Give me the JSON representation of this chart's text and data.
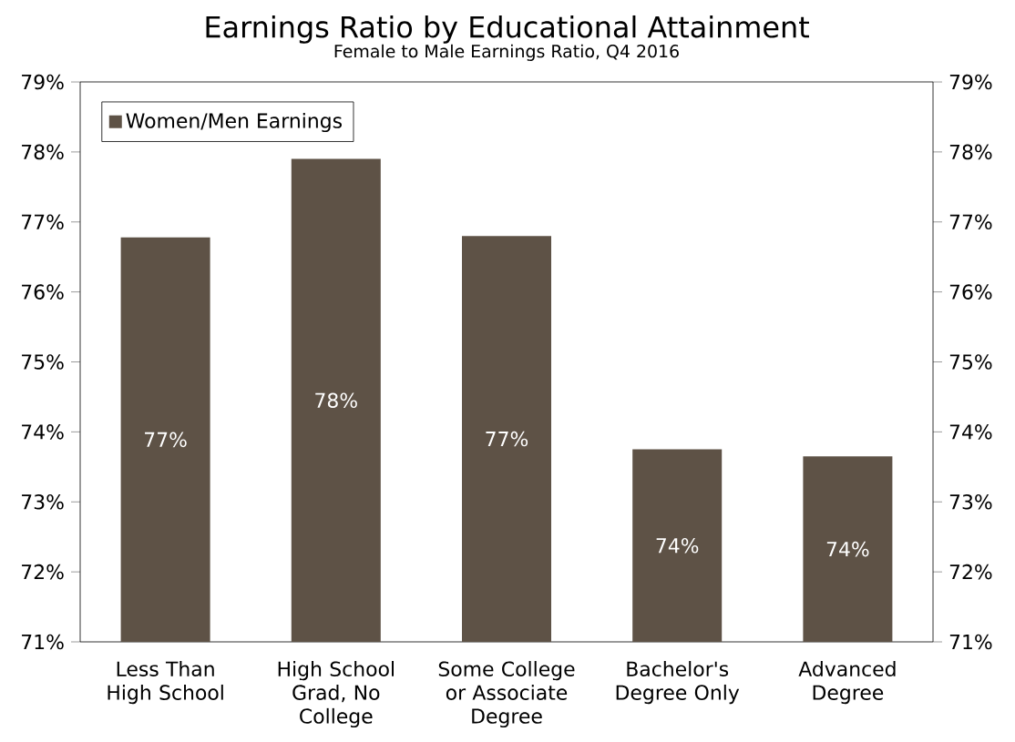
{
  "chart_data": {
    "type": "bar",
    "title": "Earnings Ratio by Educational Attainment",
    "subtitle": "Female to Male Earnings Ratio, Q4 2016",
    "categories": [
      "Less Than High School",
      "High School Grad, No College",
      "Some College or Associate Degree",
      "Bachelor's Degree Only",
      "Advanced Degree"
    ],
    "series": [
      {
        "name": "Women/Men Earnings",
        "color": "#5e5246",
        "values": [
          76.78,
          77.9,
          76.8,
          73.75,
          73.65
        ],
        "value_labels": [
          "77%",
          "78%",
          "77%",
          "74%",
          "74%"
        ]
      }
    ],
    "ylim": [
      71,
      79
    ],
    "yticks": [
      {
        "value": 71,
        "label": "71%"
      },
      {
        "value": 72,
        "label": "72%"
      },
      {
        "value": 73,
        "label": "73%"
      },
      {
        "value": 74,
        "label": "74%"
      },
      {
        "value": 75,
        "label": "75%"
      },
      {
        "value": 76,
        "label": "76%"
      },
      {
        "value": 77,
        "label": "77%"
      },
      {
        "value": 78,
        "label": "78%"
      },
      {
        "value": 79,
        "label": "79%"
      }
    ],
    "y2lim": [
      71,
      79
    ],
    "y2ticks": [
      {
        "value": 71,
        "label": "71%"
      },
      {
        "value": 72,
        "label": "72%"
      },
      {
        "value": 73,
        "label": "73%"
      },
      {
        "value": 74,
        "label": "74%"
      },
      {
        "value": 75,
        "label": "75%"
      },
      {
        "value": 76,
        "label": "76%"
      },
      {
        "value": 77,
        "label": "77%"
      },
      {
        "value": 78,
        "label": "78%"
      },
      {
        "value": 79,
        "label": "79%"
      }
    ],
    "grid": false,
    "legend": "top left"
  }
}
